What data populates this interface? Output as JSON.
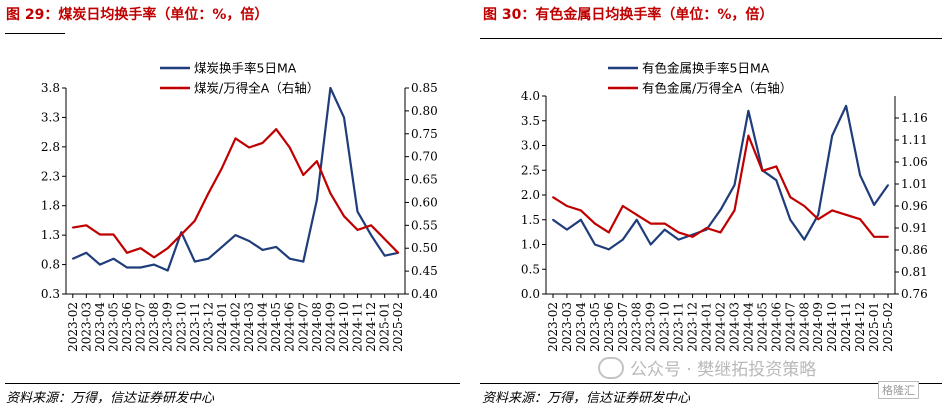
{
  "chart_data": [
    {
      "type": "line",
      "title": "图 29：煤炭日均换手率（单位：%，倍）",
      "source": "资料来源：万得，信达证券研发中心",
      "categories": [
        "2023-02",
        "2023-03",
        "2023-04",
        "2023-05",
        "2023-06",
        "2023-07",
        "2023-08",
        "2023-09",
        "2023-10",
        "2023-11",
        "2023-12",
        "2024-01",
        "2024-02",
        "2024-03",
        "2024-04",
        "2024-05",
        "2024-06",
        "2024-07",
        "2024-08",
        "2024-09",
        "2024-10",
        "2024-11",
        "2024-12",
        "2025-01",
        "2025-02"
      ],
      "ylim": [
        0.3,
        3.8
      ],
      "yticks": [
        0.3,
        0.8,
        1.3,
        1.8,
        2.3,
        2.8,
        3.3,
        3.8
      ],
      "y2lim": [
        0.4,
        0.85
      ],
      "y2ticks": [
        0.4,
        0.45,
        0.5,
        0.55,
        0.6,
        0.65,
        0.7,
        0.75,
        0.8,
        0.85
      ],
      "legend_position": "top-center",
      "grid": false,
      "series": [
        {
          "name": "煤炭换手率5日MA",
          "axis": "left",
          "color": "#1f3d7a",
          "values": [
            0.9,
            1.0,
            0.8,
            0.9,
            0.75,
            0.75,
            0.8,
            0.7,
            1.35,
            0.85,
            0.9,
            1.1,
            1.3,
            1.2,
            1.05,
            1.1,
            0.9,
            0.85,
            1.9,
            3.8,
            3.3,
            1.7,
            1.3,
            0.95,
            1.0
          ]
        },
        {
          "name": "煤炭/万得全A（右轴）",
          "axis": "right",
          "color": "#c00000",
          "values": [
            0.545,
            0.55,
            0.53,
            0.53,
            0.49,
            0.5,
            0.48,
            0.5,
            0.53,
            0.56,
            0.62,
            0.675,
            0.74,
            0.72,
            0.73,
            0.76,
            0.72,
            0.66,
            0.69,
            0.62,
            0.57,
            0.54,
            0.55,
            0.52,
            0.49
          ]
        }
      ]
    },
    {
      "type": "line",
      "title": "图 30：有色金属日均换手率（单位：%，倍）",
      "source": "资料来源：万得，信达证券研发中心",
      "categories": [
        "2023-02",
        "2023-03",
        "2023-04",
        "2023-05",
        "2023-06",
        "2023-07",
        "2023-08",
        "2023-09",
        "2023-10",
        "2023-11",
        "2023-12",
        "2024-01",
        "2024-02",
        "2024-03",
        "2024-04",
        "2024-05",
        "2024-06",
        "2024-07",
        "2024-08",
        "2024-09",
        "2024-10",
        "2024-11",
        "2024-12",
        "2025-01",
        "2025-02"
      ],
      "ylim": [
        0.0,
        4.0
      ],
      "yticks": [
        0.0,
        0.5,
        1.0,
        1.5,
        2.0,
        2.5,
        3.0,
        3.5,
        4.0
      ],
      "y2lim": [
        0.76,
        1.21
      ],
      "y2ticks": [
        0.76,
        0.81,
        0.86,
        0.91,
        0.96,
        1.01,
        1.06,
        1.11,
        1.16
      ],
      "legend_position": "top-center",
      "grid": false,
      "series": [
        {
          "name": "有色金属换手率5日MA",
          "axis": "left",
          "color": "#1f3d7a",
          "values": [
            1.5,
            1.3,
            1.5,
            1.0,
            0.9,
            1.1,
            1.5,
            1.0,
            1.3,
            1.1,
            1.2,
            1.3,
            1.7,
            2.2,
            3.7,
            2.5,
            2.3,
            1.5,
            1.1,
            1.6,
            3.2,
            3.8,
            2.4,
            1.8,
            2.2
          ]
        },
        {
          "name": "有色金属/万得全A（右轴）",
          "axis": "right",
          "color": "#c00000",
          "values": [
            0.98,
            0.96,
            0.95,
            0.92,
            0.9,
            0.96,
            0.94,
            0.92,
            0.92,
            0.9,
            0.89,
            0.91,
            0.9,
            0.95,
            1.12,
            1.04,
            1.05,
            0.98,
            0.96,
            0.93,
            0.95,
            0.94,
            0.93,
            0.89,
            0.89
          ]
        }
      ]
    }
  ],
  "watermark": "公众号 · 樊继拓投资策略",
  "logo_text": "格隆汇"
}
